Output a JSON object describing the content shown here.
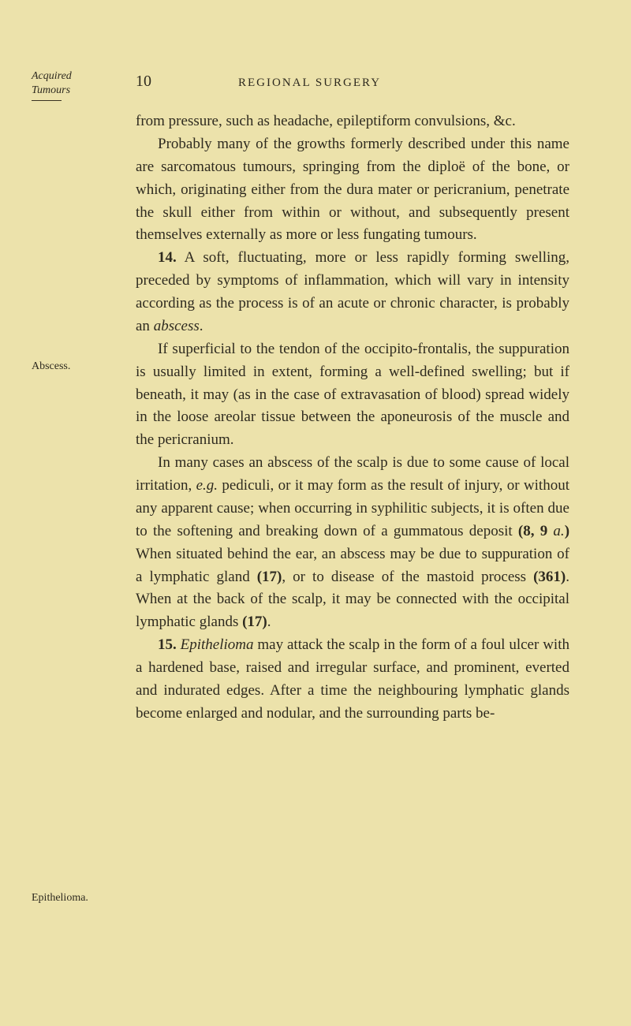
{
  "page": {
    "number": "10",
    "running_head": "REGIONAL SURGERY",
    "bg_color": "#ece2ab",
    "text_color": "#2e2a1f",
    "body_fontsize_pt": 14,
    "margin_fontsize_pt": 10,
    "line_height": 1.52
  },
  "margin_notes": {
    "acquired_l1": "Acquired",
    "acquired_l2": "Tumours",
    "abscess": "Abscess.",
    "epithelioma": "Epithelioma."
  },
  "body": {
    "p1": "from pressure, such as headache, epileptiform convulsions, &c.",
    "p2": "Probably many of the growths formerly described under this name are sarcomatous tumours, springing from the diploë of the bone, or which, originating either from the dura mater or pericranium, penetrate the skull either from within or without, and subsequently present themselves externally as more or less fungating tumours.",
    "p3_num": "14.",
    "p3a": " A soft, fluctuating, more or less rapidly forming swelling, preceded by symptoms of inflammation, which will vary in intensity according as the process is of an acute or chronic character, is probably an ",
    "p3_em": "abscess",
    "p3b": ".",
    "p4": "If superficial to the tendon of the occipito-frontalis, the suppuration is usually limited in extent, forming a well-defined swelling; but if beneath, it may (as in the case of extravasation of blood) spread widely in the loose areolar tissue between the aponeurosis of the muscle and the pericranium.",
    "p5a": "In many cases an abscess of the scalp is due to some cause of local irritation, ",
    "p5_em1": "e.g.",
    "p5b": " pediculi, or it may form as the result of injury, or without any apparent cause; when occurring in syphilitic subjects, it is often due to the softening and breaking down of a gummatous deposit ",
    "p5_ref1": "(8, 9",
    "p5_em2": " a.",
    "p5_ref1b": ")",
    "p5c": " When situated behind the ear, an abscess may be due to suppuration of a lymphatic gland ",
    "p5_ref2": "(17)",
    "p5d": ", or to disease of the mastoid process ",
    "p5_ref3": "(361)",
    "p5e": ". When at the back of the scalp, it may be connected with the occipital lymphatic glands ",
    "p5_ref4": "(17)",
    "p5f": ".",
    "p6_num": "15.",
    "p6_em": " Epithelioma",
    "p6a": " may attack the scalp in the form of a foul ulcer with a hardened base, raised and irregular surface, and prominent, everted and indurated edges. After a time the neighbouring lymphatic glands become enlarged and nodular, and the surrounding parts be-"
  }
}
